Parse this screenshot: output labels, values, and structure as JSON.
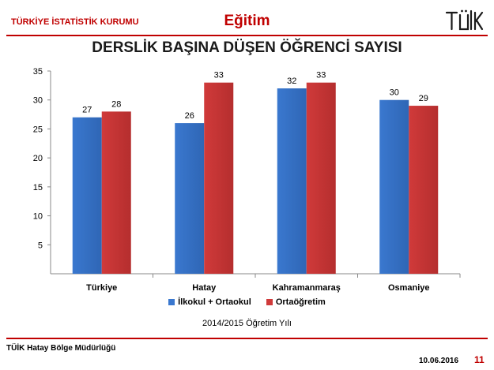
{
  "header": {
    "org_name": "TÜRKİYE İSTATİSTİK KURUMU",
    "section_title": "Eğitim",
    "logo_text": "TÜİK"
  },
  "slide_title": "DERSLİK BAŞINA DÜŞEN ÖĞRENCİ SAYISI",
  "chart_data": {
    "type": "bar",
    "title": "DERSLİK BAŞINA DÜŞEN ÖĞRENCİ SAYISI",
    "categories": [
      "Türkiye",
      "Hatay",
      "Kahramanmaraş",
      "Osmaniye"
    ],
    "series": [
      {
        "name": "İlkokul + Ortaokul",
        "values": [
          27,
          26,
          32,
          30
        ],
        "color": "#3a78cf"
      },
      {
        "name": "Ortaöğretim",
        "values": [
          28,
          33,
          33,
          29
        ],
        "color": "#d03a3a"
      }
    ],
    "yticks": [
      5,
      10,
      15,
      20,
      25,
      30,
      35
    ],
    "ylim": [
      0,
      35
    ],
    "grid": false,
    "legend_position": "bottom",
    "data_labels": true
  },
  "year_note": "2014/2015 Öğretim Yılı",
  "footer": {
    "office": "TÜİK Hatay Bölge Müdürlüğü",
    "date": "10.06.2016",
    "page": "11"
  },
  "colors": {
    "accent": "#c00000"
  }
}
